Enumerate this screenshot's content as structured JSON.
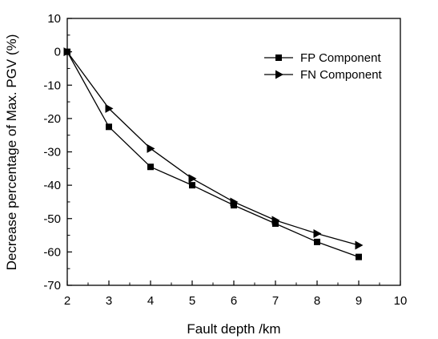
{
  "chart_data": {
    "type": "line",
    "xlabel": "Fault depth /km",
    "ylabel": "Decrease percentage of Max. PGV (%)",
    "xlim": [
      2,
      10
    ],
    "ylim": [
      -70,
      10
    ],
    "x_ticks": [
      "2",
      "3",
      "4",
      "5",
      "6",
      "7",
      "8",
      "9",
      "10"
    ],
    "y_ticks": [
      "10",
      "0",
      "-10",
      "-20",
      "-30",
      "-40",
      "-50",
      "-60",
      "-70"
    ],
    "grid": false,
    "legend_position": "top-right",
    "x": [
      2,
      3,
      4,
      5,
      6,
      7,
      8,
      9
    ],
    "series": [
      {
        "name": "FP Component",
        "marker": "square",
        "color": "#000000",
        "values": [
          0,
          -22.5,
          -34.5,
          -40,
          -46,
          -51.5,
          -57,
          -61.5
        ]
      },
      {
        "name": "FN Component",
        "marker": "triangle-right",
        "color": "#000000",
        "values": [
          0,
          -17,
          -29,
          -38,
          -45,
          -50.5,
          -54.5,
          -58
        ]
      }
    ]
  }
}
